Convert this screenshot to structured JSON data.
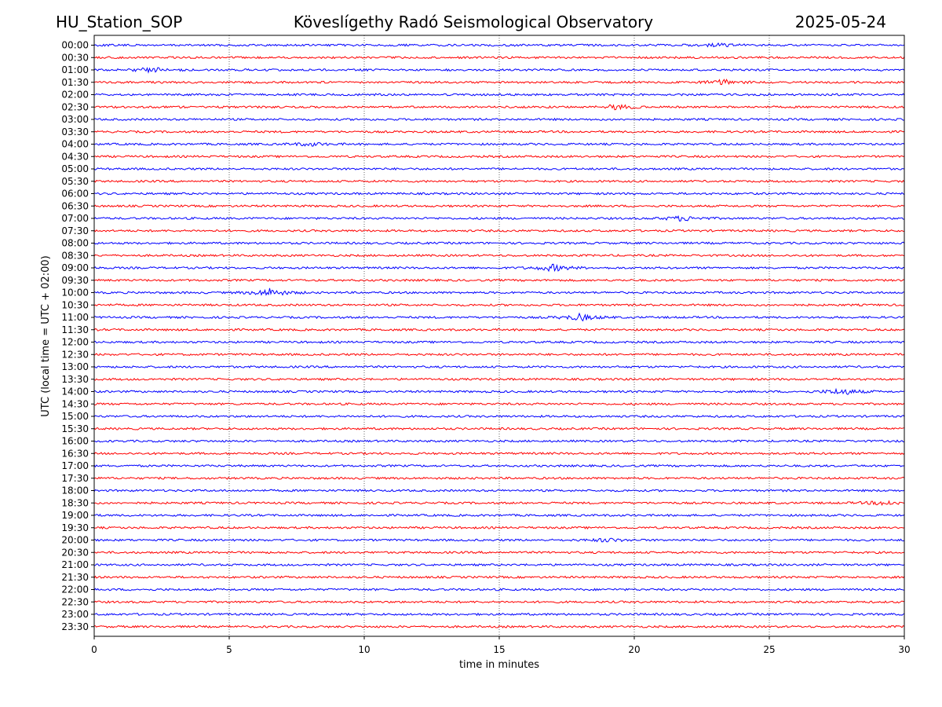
{
  "header": {
    "left": "HU_Station_SOP",
    "center": "Köveslígethy Radó Seismological Observatory",
    "right": "2025-05-24"
  },
  "chart_data": {
    "type": "line",
    "xlabel": "time in minutes",
    "ylabel": "UTC (local time = UTC + 02:00)",
    "xlim": [
      0,
      30
    ],
    "x_ticks": [
      "0",
      "5",
      "10",
      "15",
      "20",
      "25",
      "30"
    ],
    "x_tick_values": [
      0,
      5,
      10,
      15,
      20,
      25,
      30
    ],
    "grid": "vertical dotted",
    "series_colors": [
      "#0000ff",
      "#ff0000"
    ],
    "rows": [
      "00:00",
      "00:30",
      "01:00",
      "01:30",
      "02:00",
      "02:30",
      "03:00",
      "03:30",
      "04:00",
      "04:30",
      "05:00",
      "05:30",
      "06:00",
      "06:30",
      "07:00",
      "07:30",
      "08:00",
      "08:30",
      "09:00",
      "09:30",
      "10:00",
      "10:30",
      "11:00",
      "11:30",
      "12:00",
      "12:30",
      "13:00",
      "13:30",
      "14:00",
      "14:30",
      "15:00",
      "15:30",
      "16:00",
      "16:30",
      "17:00",
      "17:30",
      "18:00",
      "18:30",
      "19:00",
      "19:30",
      "20:00",
      "20:30",
      "21:00",
      "21:30",
      "22:00",
      "22:30",
      "23:00",
      "23:30"
    ],
    "events": [
      {
        "row": "00:00",
        "minute": 23.2,
        "amp": 2
      },
      {
        "row": "01:00",
        "minute": 2.2,
        "amp": 3
      },
      {
        "row": "01:30",
        "minute": 23.3,
        "amp": 3
      },
      {
        "row": "02:30",
        "minute": 19.3,
        "amp": 3
      },
      {
        "row": "04:00",
        "minute": 8.0,
        "amp": 2
      },
      {
        "row": "07:00",
        "minute": 21.8,
        "amp": 3
      },
      {
        "row": "09:00",
        "minute": 17.0,
        "amp": 4
      },
      {
        "row": "10:00",
        "minute": 6.5,
        "amp": 5
      },
      {
        "row": "11:00",
        "minute": 18.0,
        "amp": 4
      },
      {
        "row": "14:00",
        "minute": 27.7,
        "amp": 4
      },
      {
        "row": "18:30",
        "minute": 29.3,
        "amp": 3
      },
      {
        "row": "20:00",
        "minute": 19.0,
        "amp": 2
      }
    ]
  }
}
